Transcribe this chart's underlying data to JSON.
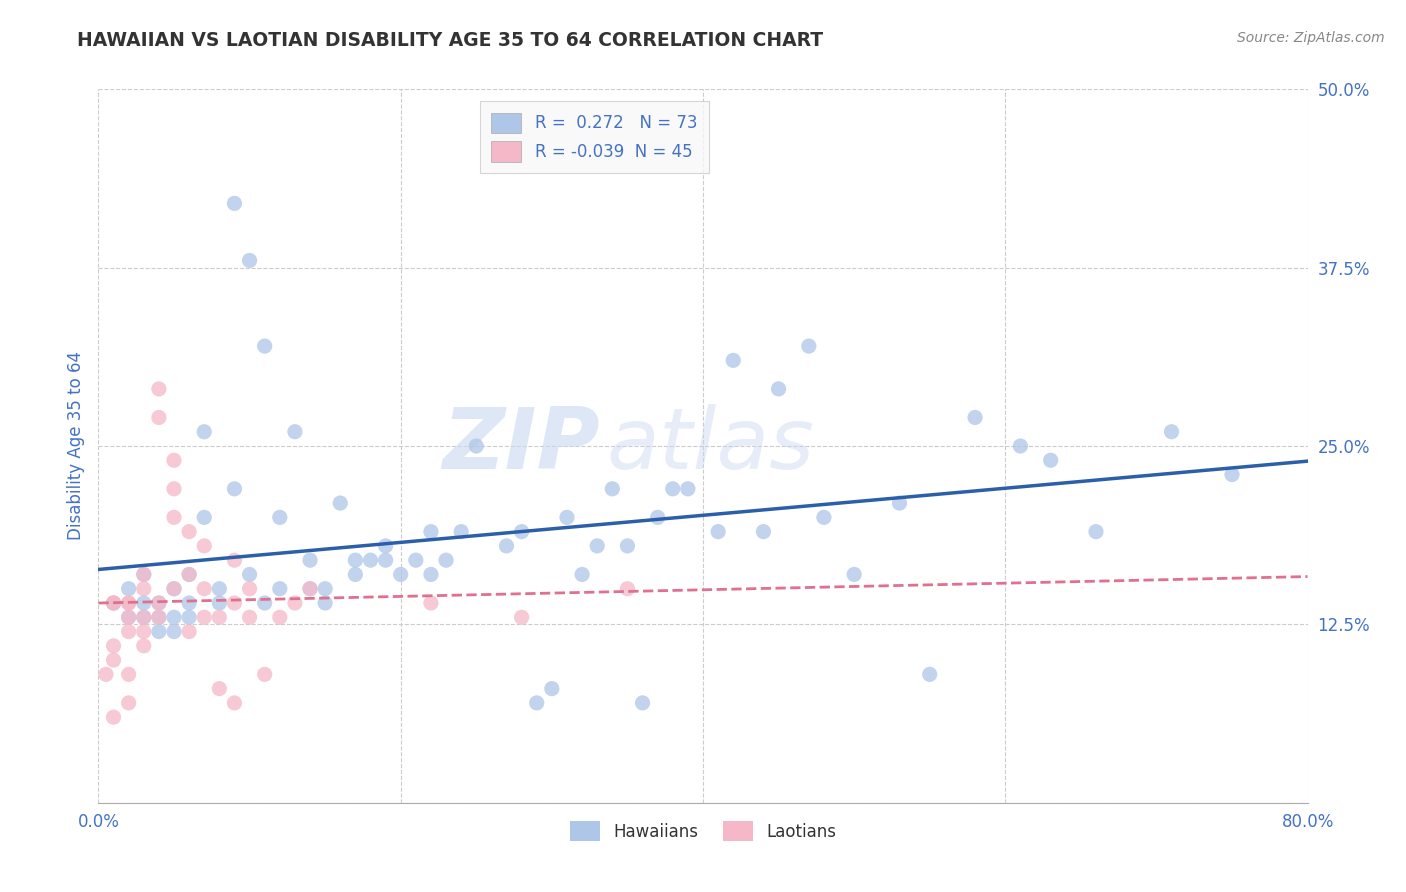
{
  "title": "HAWAIIAN VS LAOTIAN DISABILITY AGE 35 TO 64 CORRELATION CHART",
  "source": "Source: ZipAtlas.com",
  "ylabel": "Disability Age 35 to 64",
  "xlim": [
    0.0,
    0.8
  ],
  "ylim": [
    0.0,
    0.5
  ],
  "xticks": [
    0.0,
    0.2,
    0.4,
    0.6,
    0.8
  ],
  "xticklabels": [
    "0.0%",
    "",
    "",
    "",
    "80.0%"
  ],
  "yticks": [
    0.0,
    0.125,
    0.25,
    0.375,
    0.5
  ],
  "yticklabels": [
    "",
    "12.5%",
    "25.0%",
    "37.5%",
    "50.0%"
  ],
  "hawaiian_R": 0.272,
  "hawaiian_N": 73,
  "laotian_R": -0.039,
  "laotian_N": 45,
  "hawaiian_color": "#aec6e8",
  "laotian_color": "#f4b8c8",
  "hawaiian_line_color": "#2c5faa",
  "laotian_line_color": "#e07090",
  "hawaiian_x": [
    0.01,
    0.02,
    0.02,
    0.03,
    0.03,
    0.03,
    0.04,
    0.04,
    0.04,
    0.05,
    0.05,
    0.05,
    0.06,
    0.06,
    0.06,
    0.07,
    0.07,
    0.08,
    0.08,
    0.09,
    0.09,
    0.1,
    0.1,
    0.11,
    0.11,
    0.12,
    0.12,
    0.13,
    0.14,
    0.14,
    0.15,
    0.15,
    0.16,
    0.17,
    0.17,
    0.18,
    0.19,
    0.19,
    0.2,
    0.21,
    0.22,
    0.22,
    0.23,
    0.24,
    0.25,
    0.27,
    0.28,
    0.29,
    0.3,
    0.31,
    0.32,
    0.33,
    0.34,
    0.35,
    0.36,
    0.37,
    0.38,
    0.39,
    0.41,
    0.42,
    0.44,
    0.45,
    0.47,
    0.48,
    0.5,
    0.53,
    0.55,
    0.58,
    0.61,
    0.63,
    0.66,
    0.71,
    0.75
  ],
  "hawaiian_y": [
    0.14,
    0.13,
    0.15,
    0.14,
    0.13,
    0.16,
    0.14,
    0.13,
    0.12,
    0.15,
    0.13,
    0.12,
    0.14,
    0.13,
    0.16,
    0.2,
    0.26,
    0.14,
    0.15,
    0.22,
    0.42,
    0.38,
    0.16,
    0.32,
    0.14,
    0.2,
    0.15,
    0.26,
    0.15,
    0.17,
    0.14,
    0.15,
    0.21,
    0.17,
    0.16,
    0.17,
    0.17,
    0.18,
    0.16,
    0.17,
    0.16,
    0.19,
    0.17,
    0.19,
    0.25,
    0.18,
    0.19,
    0.07,
    0.08,
    0.2,
    0.16,
    0.18,
    0.22,
    0.18,
    0.07,
    0.2,
    0.22,
    0.22,
    0.19,
    0.31,
    0.19,
    0.29,
    0.32,
    0.2,
    0.16,
    0.21,
    0.09,
    0.27,
    0.25,
    0.24,
    0.19,
    0.26,
    0.23
  ],
  "laotian_x": [
    0.005,
    0.01,
    0.01,
    0.01,
    0.01,
    0.01,
    0.02,
    0.02,
    0.02,
    0.02,
    0.02,
    0.02,
    0.03,
    0.03,
    0.03,
    0.03,
    0.03,
    0.04,
    0.04,
    0.04,
    0.04,
    0.05,
    0.05,
    0.05,
    0.05,
    0.06,
    0.06,
    0.06,
    0.07,
    0.07,
    0.07,
    0.08,
    0.08,
    0.09,
    0.09,
    0.09,
    0.1,
    0.1,
    0.11,
    0.12,
    0.13,
    0.14,
    0.22,
    0.28,
    0.35
  ],
  "laotian_y": [
    0.09,
    0.11,
    0.14,
    0.14,
    0.1,
    0.06,
    0.14,
    0.13,
    0.12,
    0.14,
    0.09,
    0.07,
    0.15,
    0.13,
    0.12,
    0.16,
    0.11,
    0.27,
    0.29,
    0.14,
    0.13,
    0.24,
    0.22,
    0.2,
    0.15,
    0.19,
    0.16,
    0.12,
    0.18,
    0.15,
    0.13,
    0.13,
    0.08,
    0.17,
    0.14,
    0.07,
    0.15,
    0.13,
    0.09,
    0.13,
    0.14,
    0.15,
    0.14,
    0.13,
    0.15
  ],
  "watermark_zip": "ZIP",
  "watermark_atlas": "atlas",
  "background_color": "#ffffff",
  "grid_color": "#cccccc",
  "title_color": "#333333",
  "axis_label_color": "#4472c4",
  "tick_label_color": "#4472c4",
  "legend_label_color": "#4472c4"
}
